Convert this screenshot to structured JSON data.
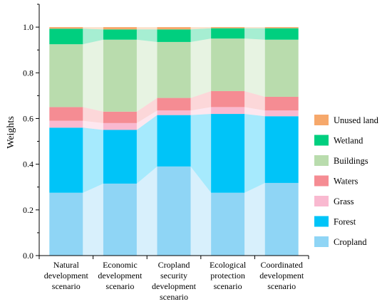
{
  "chart_data": {
    "type": "bar",
    "stacked": true,
    "ylabel": "Weights",
    "xlabel": "",
    "ylim": [
      0,
      1.1
    ],
    "yticks": [
      "0.0",
      "0.2",
      "0.4",
      "0.6",
      "0.8",
      "1.0"
    ],
    "categories": [
      [
        "Natural",
        "development",
        "scenario"
      ],
      [
        "Economic",
        "development",
        "scenario"
      ],
      [
        "Cropland",
        "security",
        "development",
        "scenario"
      ],
      [
        "Ecological",
        "protection",
        "scenario"
      ],
      [
        "Coordinated",
        "development",
        "scenario"
      ]
    ],
    "series": [
      {
        "name": "Cropland",
        "color": "#8fd5f5",
        "values": [
          0.275,
          0.315,
          0.39,
          0.275,
          0.318
        ]
      },
      {
        "name": "Forest",
        "color": "#00c4f8",
        "values": [
          0.285,
          0.235,
          0.225,
          0.345,
          0.292
        ]
      },
      {
        "name": "Grass",
        "color": "#f9b9d0",
        "values": [
          0.03,
          0.03,
          0.02,
          0.03,
          0.025
        ]
      },
      {
        "name": "Waters",
        "color": "#f58c93",
        "values": [
          0.06,
          0.05,
          0.055,
          0.07,
          0.06
        ]
      },
      {
        "name": "Buildings",
        "color": "#b9dcad",
        "values": [
          0.275,
          0.315,
          0.245,
          0.23,
          0.25
        ]
      },
      {
        "name": "Wetland",
        "color": "#00cf7f",
        "values": [
          0.068,
          0.045,
          0.055,
          0.045,
          0.05
        ]
      },
      {
        "name": "Unused land",
        "color": "#f6a86b",
        "values": [
          0.007,
          0.01,
          0.01,
          0.005,
          0.005
        ]
      }
    ],
    "legend_order": [
      "Unused land",
      "Wetland",
      "Buildings",
      "Waters",
      "Grass",
      "Forest",
      "Cropland"
    ],
    "legend_position": "right"
  }
}
